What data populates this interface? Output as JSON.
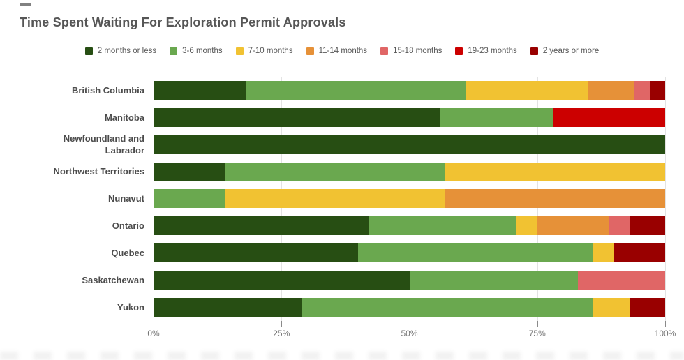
{
  "page": {
    "title": "Time Spent Waiting For Exploration Permit Approvals"
  },
  "chart_data": {
    "type": "bar",
    "orientation": "horizontal",
    "stacked": true,
    "title": "Time Spent Waiting For Exploration Permit Approvals",
    "legend_position": "top",
    "grid": true,
    "categories": [
      "British Columbia",
      "Manitoba",
      "Newfoundland and Labrador",
      "Northwest Territories",
      "Nunavut",
      "Ontario",
      "Quebec",
      "Saskatchewan",
      "Yukon"
    ],
    "series": [
      {
        "name": "2 months or less",
        "color": "#274e13",
        "values": [
          18,
          56,
          100,
          14,
          0,
          42,
          40,
          50,
          29
        ]
      },
      {
        "name": "3-6 months",
        "color": "#6aa84f",
        "values": [
          43,
          22,
          0,
          43,
          14,
          29,
          46,
          33,
          57
        ]
      },
      {
        "name": "7-10 months",
        "color": "#f1c232",
        "values": [
          24,
          0,
          0,
          43,
          43,
          4,
          4,
          0,
          7
        ]
      },
      {
        "name": "11-14 months",
        "color": "#e69138",
        "values": [
          9,
          0,
          0,
          0,
          43,
          14,
          0,
          0,
          0
        ]
      },
      {
        "name": "15-18 months",
        "color": "#e06666",
        "values": [
          3,
          0,
          0,
          0,
          0,
          4,
          0,
          17,
          0
        ]
      },
      {
        "name": "19-23 months",
        "color": "#cc0000",
        "values": [
          0,
          22,
          0,
          0,
          0,
          0,
          0,
          0,
          0
        ]
      },
      {
        "name": "2 years or more",
        "color": "#990000",
        "values": [
          3,
          0,
          0,
          0,
          0,
          7,
          10,
          0,
          7
        ]
      }
    ],
    "x_axis": {
      "min": 0,
      "max": 100,
      "tick_labels": [
        "0%",
        "25%",
        "50%",
        "75%",
        "100%"
      ],
      "tick_values": [
        0,
        25,
        50,
        75,
        100
      ]
    }
  },
  "colors": {
    "title_text": "#565656",
    "row_label_text": "#4c4c4c",
    "axis_text": "#757575",
    "gridline": "#e3e3e3",
    "axis_line": "#6e6e6e"
  }
}
